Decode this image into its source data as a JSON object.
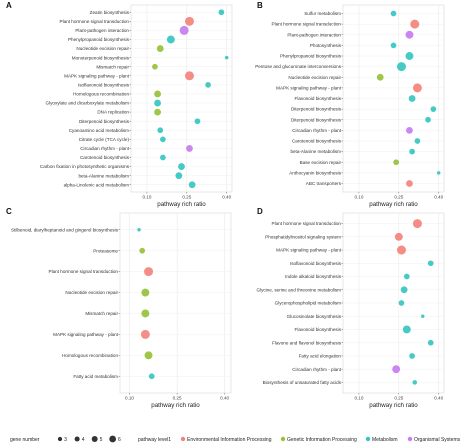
{
  "colors": {
    "Environmental Information Processing": "#f4837d",
    "Genetic Information Processing": "#98c13a",
    "Metabolism": "#35c6c0",
    "Organismal Systems": "#c77cf0"
  },
  "legend": {
    "size_title": "gene number",
    "sizes": [
      3,
      4,
      5,
      6
    ],
    "color_title": "pathway level1",
    "categories": [
      "Environmental Information Processing",
      "Genetic Information Processing",
      "Metabolism",
      "Organismal Systems"
    ]
  },
  "chart_data": [
    {
      "panel": "A",
      "type": "scatter",
      "xlabel": "pathway rich ratio",
      "xlim": [
        0.04,
        0.42
      ],
      "xticks": [
        "0.10",
        "0.25",
        "0.40"
      ],
      "xtick_values": [
        0.1,
        0.25,
        0.4
      ],
      "grid": true,
      "points": [
        {
          "term": "Zeatin biosynthesis",
          "x": 0.38,
          "genes": 3,
          "level": "Metabolism"
        },
        {
          "term": "Plant hormone signal transduction",
          "x": 0.26,
          "genes": 6,
          "level": "Environmental Information Processing"
        },
        {
          "term": "Plant-pathogen interaction",
          "x": 0.24,
          "genes": 6,
          "level": "Organismal Systems"
        },
        {
          "term": "Phenylpropanoid biosynthesis",
          "x": 0.19,
          "genes": 5,
          "level": "Metabolism"
        },
        {
          "term": "Nucleotide excision repair",
          "x": 0.15,
          "genes": 4,
          "level": "Genetic Information Processing"
        },
        {
          "term": "Monoterpenoid biosynthesis",
          "x": 0.4,
          "genes": 1,
          "level": "Metabolism"
        },
        {
          "term": "Mismatch repair",
          "x": 0.13,
          "genes": 3,
          "level": "Genetic Information Processing"
        },
        {
          "term": "MAPK signaling pathway - plant",
          "x": 0.26,
          "genes": 6,
          "level": "Environmental Information Processing"
        },
        {
          "term": "Isoflavonoid biosynthesis",
          "x": 0.33,
          "genes": 3,
          "level": "Metabolism"
        },
        {
          "term": "Homologous recombination",
          "x": 0.14,
          "genes": 4,
          "level": "Genetic Information Processing"
        },
        {
          "term": "Glyoxylate and dicarboxylate metabolism",
          "x": 0.14,
          "genes": 4,
          "level": "Metabolism"
        },
        {
          "term": "DNA replication",
          "x": 0.14,
          "genes": 4,
          "level": "Genetic Information Processing"
        },
        {
          "term": "Diterpenoid biosynthesis",
          "x": 0.29,
          "genes": 3,
          "level": "Metabolism"
        },
        {
          "term": "Cyanoamino acid metabolism",
          "x": 0.15,
          "genes": 3,
          "level": "Metabolism"
        },
        {
          "term": "Citrate cycle (TCA cycle)",
          "x": 0.16,
          "genes": 3,
          "level": "Metabolism"
        },
        {
          "term": "Circadian rhythm - plant",
          "x": 0.26,
          "genes": 4,
          "level": "Organismal Systems"
        },
        {
          "term": "Carotenoid biosynthesis",
          "x": 0.16,
          "genes": 3,
          "level": "Metabolism"
        },
        {
          "term": "Carbon fixation in photosynthetic organisms",
          "x": 0.23,
          "genes": 4,
          "level": "Metabolism"
        },
        {
          "term": "beta-Alanine metabolism",
          "x": 0.22,
          "genes": 4,
          "level": "Metabolism"
        },
        {
          "term": "alpha-Linolenic acid metabolism",
          "x": 0.27,
          "genes": 4,
          "level": "Metabolism"
        }
      ]
    },
    {
      "panel": "B",
      "type": "scatter",
      "xlabel": "pathway rich ratio",
      "xlim": [
        0.04,
        0.42
      ],
      "xticks": [
        "0.10",
        "0.25",
        "0.40"
      ],
      "xtick_values": [
        0.1,
        0.25,
        0.4
      ],
      "grid": true,
      "points": [
        {
          "term": "Sulfur metabolism",
          "x": 0.23,
          "genes": 3,
          "level": "Metabolism"
        },
        {
          "term": "Plant hormone signal transduction",
          "x": 0.31,
          "genes": 6,
          "level": "Environmental Information Processing"
        },
        {
          "term": "Plant-pathogen interaction",
          "x": 0.29,
          "genes": 5,
          "level": "Organismal Systems"
        },
        {
          "term": "Photosynthesis",
          "x": 0.23,
          "genes": 3,
          "level": "Metabolism"
        },
        {
          "term": "Phenylpropanoid biosynthesis",
          "x": 0.29,
          "genes": 5,
          "level": "Metabolism"
        },
        {
          "term": "Pentose and glucuronate interconversions",
          "x": 0.26,
          "genes": 6,
          "level": "Metabolism"
        },
        {
          "term": "Nucleotide excision repair",
          "x": 0.18,
          "genes": 4,
          "level": "Genetic Information Processing"
        },
        {
          "term": "MAPK signaling pathway - plant",
          "x": 0.32,
          "genes": 6,
          "level": "Environmental Information Processing"
        },
        {
          "term": "Flavonoid biosynthesis",
          "x": 0.3,
          "genes": 4,
          "level": "Metabolism"
        },
        {
          "term": "Diterpenoid biosynthesis",
          "x": 0.38,
          "genes": 3,
          "level": "Metabolism"
        },
        {
          "term": "Diterpenoid biosynthesis",
          "x": 0.36,
          "genes": 3,
          "level": "Metabolism"
        },
        {
          "term": "Circadian rhythm - plant",
          "x": 0.29,
          "genes": 4,
          "level": "Organismal Systems"
        },
        {
          "term": "Carotenoid biosynthesis",
          "x": 0.32,
          "genes": 3,
          "level": "Metabolism"
        },
        {
          "term": "beta-Alanine metabolism",
          "x": 0.3,
          "genes": 3,
          "level": "Metabolism"
        },
        {
          "term": "Base excision repair",
          "x": 0.24,
          "genes": 3,
          "level": "Genetic Information Processing"
        },
        {
          "term": "Anthocyanin biosynthesis",
          "x": 0.4,
          "genes": 1,
          "level": "Metabolism"
        },
        {
          "term": "ABC transporters",
          "x": 0.29,
          "genes": 4,
          "level": "Environmental Information Processing"
        }
      ]
    },
    {
      "panel": "C",
      "type": "scatter",
      "xlabel": "pathway rich ratio",
      "xlim": [
        0.07,
        0.42
      ],
      "xticks": [
        "0.10",
        "0.25",
        "0.40"
      ],
      "xtick_values": [
        0.1,
        0.25,
        0.4
      ],
      "grid": true,
      "points": [
        {
          "term": "Stilbenoid, diarylheptanoid and gingerol biosynthesis",
          "x": 0.13,
          "genes": 1,
          "level": "Metabolism"
        },
        {
          "term": "Proteasome",
          "x": 0.14,
          "genes": 3,
          "level": "Genetic Information Processing"
        },
        {
          "term": "Plant hormone signal transduction",
          "x": 0.16,
          "genes": 6,
          "level": "Environmental Information Processing"
        },
        {
          "term": "Nucleotide excision repair",
          "x": 0.15,
          "genes": 5,
          "level": "Genetic Information Processing"
        },
        {
          "term": "Mismatch repair",
          "x": 0.15,
          "genes": 5,
          "level": "Genetic Information Processing"
        },
        {
          "term": "MAPK signaling pathway - plant",
          "x": 0.15,
          "genes": 6,
          "level": "Environmental Information Processing"
        },
        {
          "term": "Homologous recombination",
          "x": 0.16,
          "genes": 5,
          "level": "Genetic Information Processing"
        },
        {
          "term": "Fatty acid metabolism",
          "x": 0.17,
          "genes": 3,
          "level": "Metabolism"
        }
      ]
    },
    {
      "panel": "D",
      "type": "scatter",
      "xlabel": "pathway rich ratio",
      "xlim": [
        0.04,
        0.42
      ],
      "xticks": [
        "0.10",
        "0.25",
        "0.40"
      ],
      "xtick_values": [
        0.1,
        0.25,
        0.4
      ],
      "grid": true,
      "points": [
        {
          "term": "Plant hormone signal transduction",
          "x": 0.32,
          "genes": 6,
          "level": "Environmental Information Processing"
        },
        {
          "term": "Phosphatidylinositol signaling system",
          "x": 0.25,
          "genes": 5,
          "level": "Environmental Information Processing"
        },
        {
          "term": "MAPK signaling pathway - plant",
          "x": 0.26,
          "genes": 6,
          "level": "Environmental Information Processing"
        },
        {
          "term": "Isoflavonoid biosynthesis",
          "x": 0.37,
          "genes": 3,
          "level": "Metabolism"
        },
        {
          "term": "Indole alkaloid biosynthesis",
          "x": 0.28,
          "genes": 3,
          "level": "Metabolism"
        },
        {
          "term": "Glycine, serine and threonine metabolism",
          "x": 0.27,
          "genes": 4,
          "level": "Metabolism"
        },
        {
          "term": "Glycerophospholipid metabolism",
          "x": 0.26,
          "genes": 3,
          "level": "Metabolism"
        },
        {
          "term": "Glucosinolate biosynthesis",
          "x": 0.34,
          "genes": 1,
          "level": "Metabolism"
        },
        {
          "term": "Flavonoid biosynthesis",
          "x": 0.28,
          "genes": 5,
          "level": "Metabolism"
        },
        {
          "term": "Flavone and flavonol biosynthesis",
          "x": 0.37,
          "genes": 3,
          "level": "Metabolism"
        },
        {
          "term": "Fatty acid elongation",
          "x": 0.3,
          "genes": 3,
          "level": "Metabolism"
        },
        {
          "term": "Circadian rhythm - plant",
          "x": 0.24,
          "genes": 5,
          "level": "Organismal Systems"
        },
        {
          "term": "Biosynthesis of unsaturated fatty acids",
          "x": 0.31,
          "genes": 2,
          "level": "Metabolism"
        }
      ]
    }
  ]
}
